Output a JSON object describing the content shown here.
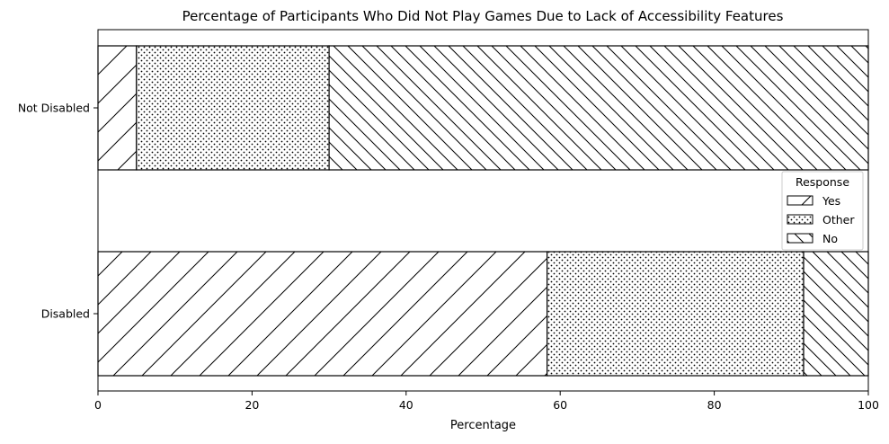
{
  "chart_data": {
    "type": "bar",
    "orientation": "horizontal",
    "stacked": true,
    "title": "Percentage of Participants Who Did Not Play Games Due to Lack of Accessibility Features",
    "xlabel": "Percentage",
    "ylabel": "",
    "xlim": [
      0,
      100
    ],
    "xticks": [
      0,
      20,
      40,
      60,
      80,
      100
    ],
    "categories": [
      "Not Disabled",
      "Disabled"
    ],
    "series": [
      {
        "name": "Yes",
        "values": [
          5,
          58.3
        ],
        "pattern": "forward-diagonal-hatch"
      },
      {
        "name": "Other",
        "values": [
          25,
          33.3
        ],
        "pattern": "dots"
      },
      {
        "name": "No",
        "values": [
          70,
          8.4
        ],
        "pattern": "backward-diagonal-hatch"
      }
    ],
    "legend": {
      "title": "Response",
      "position": "center-right"
    },
    "grid": false,
    "colors": {
      "fill": "#ffffff",
      "edge": "#000000"
    }
  }
}
